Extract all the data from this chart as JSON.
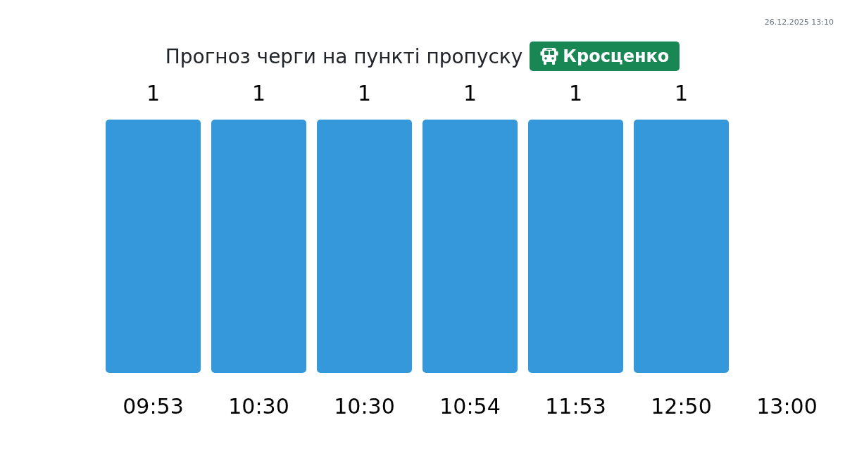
{
  "chart_data": {
    "type": "bar",
    "title": "Прогноз черги на пункті пропуску",
    "subtitle": "Кросценко",
    "categories": [
      "09:53",
      "10:30",
      "10:30",
      "10:54",
      "11:53",
      "12:50",
      "13:00"
    ],
    "values": [
      1,
      1,
      1,
      1,
      1,
      1,
      null
    ],
    "color": "#3498db",
    "data_labels": true,
    "annotations": [
      "26.12.2025 13:10"
    ]
  }
}
